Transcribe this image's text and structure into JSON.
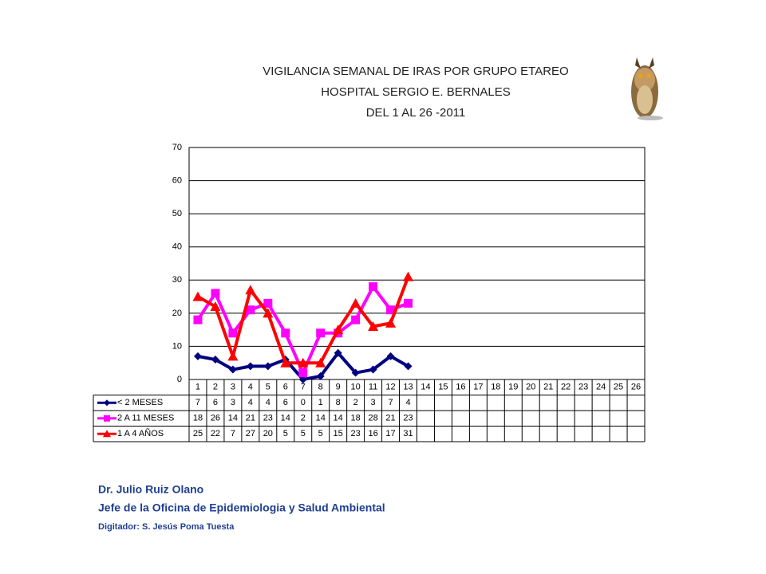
{
  "chart_data": {
    "type": "line",
    "title": [
      "VIGILANCIA SEMANAL DE IRAS POR GRUPO ETAREO",
      "HOSPITAL SERGIO E. BERNALES",
      "DEL 1 AL 26 -2011"
    ],
    "categories": [
      "1",
      "2",
      "3",
      "4",
      "5",
      "6",
      "7",
      "8",
      "9",
      "10",
      "11",
      "12",
      "13",
      "14",
      "15",
      "16",
      "17",
      "18",
      "19",
      "20",
      "21",
      "22",
      "23",
      "24",
      "25",
      "26"
    ],
    "series": [
      {
        "name": "< 2 MESES",
        "color": "#000080",
        "marker": "diamond",
        "values": [
          7,
          6,
          3,
          4,
          4,
          6,
          0,
          1,
          8,
          2,
          3,
          7,
          4,
          null,
          null,
          null,
          null,
          null,
          null,
          null,
          null,
          null,
          null,
          null,
          null,
          null
        ]
      },
      {
        "name": "2 A 11 MESES",
        "color": "#ff00ff",
        "marker": "square",
        "values": [
          18,
          26,
          14,
          21,
          23,
          14,
          2,
          14,
          14,
          18,
          28,
          21,
          23,
          null,
          null,
          null,
          null,
          null,
          null,
          null,
          null,
          null,
          null,
          null,
          null,
          null
        ]
      },
      {
        "name": "1 A 4 AÑOS",
        "color": "#ff0000",
        "marker": "triangle",
        "values": [
          25,
          22,
          7,
          27,
          20,
          5,
          5,
          5,
          15,
          23,
          16,
          17,
          31,
          null,
          null,
          null,
          null,
          null,
          null,
          null,
          null,
          null,
          null,
          null,
          null,
          null
        ]
      }
    ],
    "ylim": [
      0,
      70
    ],
    "yticks": [
      0,
      10,
      20,
      30,
      40,
      50,
      60,
      70
    ],
    "grid": true,
    "data_table": true
  },
  "footer": {
    "author": "Dr.  Julio Ruiz Olano",
    "position": "Jefe de la Oficina de Epidemiologia y  Salud Ambiental",
    "digitizer": "Digitador: S. Jesús Poma Tuesta"
  }
}
